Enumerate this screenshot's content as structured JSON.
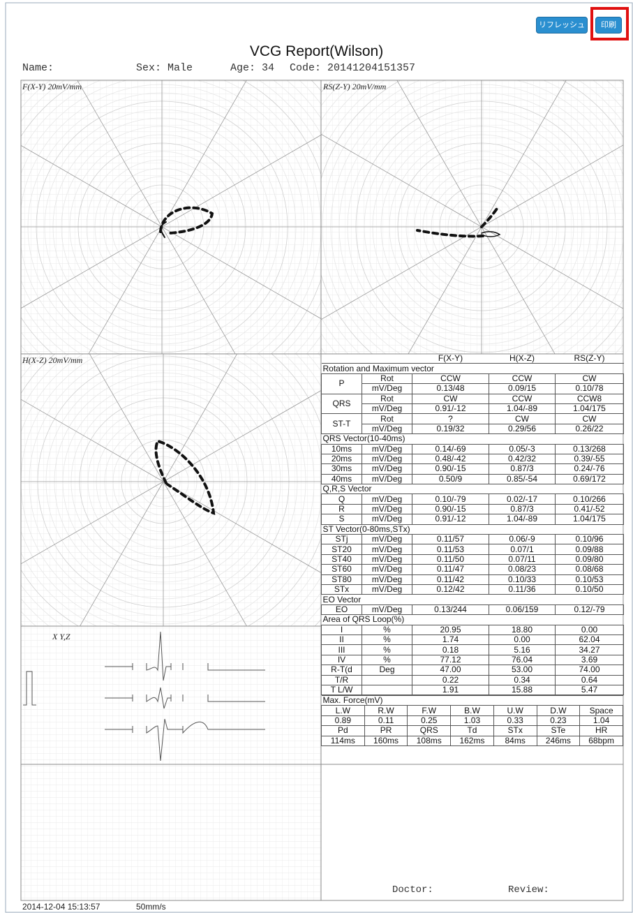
{
  "toolbar": {
    "refresh": "リフレッシュ",
    "print": "印刷"
  },
  "header": {
    "title": "VCG Report(Wilson)",
    "name": "Name:",
    "sex": "Sex: Male",
    "age": "Age: 34",
    "code": "Code: 20141204151357"
  },
  "panels": {
    "fxy": "F(X-Y) 20mV/mm",
    "rszy": "RS(Z-Y) 20mV/mm",
    "hxz": "H(X-Z) 20mV/mm",
    "xyz": "X Y,Z"
  },
  "table": {
    "columns": [
      "F(X-Y)",
      "H(X-Z)",
      "RS(Z-Y)"
    ],
    "sections": [
      {
        "title": "Rotation and Maximum vector",
        "rows": [
          {
            "label": "P",
            "lines": [
              {
                "unit": "Rot",
                "values": [
                  "CCW",
                  "CCW",
                  "CW"
                ]
              },
              {
                "unit": "mV/Deg",
                "values": [
                  "0.13/48",
                  "0.09/15",
                  "0.10/78"
                ]
              }
            ]
          },
          {
            "label": "QRS",
            "lines": [
              {
                "unit": "Rot",
                "values": [
                  "CW",
                  "CCW",
                  "CCW8"
                ]
              },
              {
                "unit": "mV/Deg",
                "values": [
                  "0.91/-12",
                  "1.04/-89",
                  "1.04/175"
                ]
              }
            ]
          },
          {
            "label": "ST-T",
            "lines": [
              {
                "unit": "Rot",
                "values": [
                  "?",
                  "CW",
                  "CW"
                ]
              },
              {
                "unit": "mV/Deg",
                "values": [
                  "0.19/32",
                  "0.29/56",
                  "0.26/22"
                ]
              }
            ]
          }
        ]
      },
      {
        "title": "QRS Vector(10-40ms)",
        "rows": [
          {
            "label": "10ms",
            "lines": [
              {
                "unit": "mV/Deg",
                "values": [
                  "0.14/-69",
                  "0.05/-3",
                  "0.13/268"
                ]
              }
            ]
          },
          {
            "label": "20ms",
            "lines": [
              {
                "unit": "mV/Deg",
                "values": [
                  "0.48/-42",
                  "0.42/32",
                  "0.39/-55"
                ]
              }
            ]
          },
          {
            "label": "30ms",
            "lines": [
              {
                "unit": "mV/Deg",
                "values": [
                  "0.90/-15",
                  "0.87/3",
                  "0.24/-76"
                ]
              }
            ]
          },
          {
            "label": "40ms",
            "lines": [
              {
                "unit": "mV/Deg",
                "values": [
                  "0.50/9",
                  "0.85/-54",
                  "0.69/172"
                ]
              }
            ]
          }
        ]
      },
      {
        "title": "Q,R,S Vector",
        "rows": [
          {
            "label": "Q",
            "lines": [
              {
                "unit": "mV/Deg",
                "values": [
                  "0.10/-79",
                  "0.02/-17",
                  "0.10/266"
                ]
              }
            ]
          },
          {
            "label": "R",
            "lines": [
              {
                "unit": "mV/Deg",
                "values": [
                  "0.90/-15",
                  "0.87/3",
                  "0.41/-52"
                ]
              }
            ]
          },
          {
            "label": "S",
            "lines": [
              {
                "unit": "mV/Deg",
                "values": [
                  "0.91/-12",
                  "1.04/-89",
                  "1.04/175"
                ]
              }
            ]
          }
        ]
      },
      {
        "title": "ST Vector(0-80ms,STx)",
        "rows": [
          {
            "label": "STj",
            "lines": [
              {
                "unit": "mV/Deg",
                "values": [
                  "0.11/57",
                  "0.06/-9",
                  "0.10/96"
                ]
              }
            ]
          },
          {
            "label": "ST20",
            "lines": [
              {
                "unit": "mV/Deg",
                "values": [
                  "0.11/53",
                  "0.07/1",
                  "0.09/88"
                ]
              }
            ]
          },
          {
            "label": "ST40",
            "lines": [
              {
                "unit": "mV/Deg",
                "values": [
                  "0.11/50",
                  "0.07/11",
                  "0.09/80"
                ]
              }
            ]
          },
          {
            "label": "ST60",
            "lines": [
              {
                "unit": "mV/Deg",
                "values": [
                  "0.11/47",
                  "0.08/23",
                  "0.08/68"
                ]
              }
            ]
          },
          {
            "label": "ST80",
            "lines": [
              {
                "unit": "mV/Deg",
                "values": [
                  "0.11/42",
                  "0.10/33",
                  "0.10/53"
                ]
              }
            ]
          },
          {
            "label": "STx",
            "lines": [
              {
                "unit": "mV/Deg",
                "values": [
                  "0.12/42",
                  "0.11/36",
                  "0.10/50"
                ]
              }
            ]
          }
        ]
      },
      {
        "title": "EO Vector",
        "rows": [
          {
            "label": "EO",
            "lines": [
              {
                "unit": "mV/Deg",
                "values": [
                  "0.13/244",
                  "0.06/159",
                  "0.12/-79"
                ]
              }
            ]
          }
        ]
      },
      {
        "title": "Area of QRS Loop(%)",
        "rows": [
          {
            "label": "I",
            "lines": [
              {
                "unit": "%",
                "values": [
                  "20.95",
                  "18.80",
                  "0.00"
                ]
              }
            ]
          },
          {
            "label": "II",
            "lines": [
              {
                "unit": "%",
                "values": [
                  "1.74",
                  "0.00",
                  "62.04"
                ]
              }
            ]
          },
          {
            "label": "III",
            "lines": [
              {
                "unit": "%",
                "values": [
                  "0.18",
                  "5.16",
                  "34.27"
                ]
              }
            ]
          },
          {
            "label": "IV",
            "lines": [
              {
                "unit": "%",
                "values": [
                  "77.12",
                  "76.04",
                  "3.69"
                ]
              }
            ]
          },
          {
            "label": "R-T(d",
            "lines": [
              {
                "unit": "Deg",
                "values": [
                  "47.00",
                  "53.00",
                  "74.00"
                ]
              }
            ]
          },
          {
            "label": "T/R",
            "lines": [
              {
                "values": [
                  "0.22",
                  "0.34",
                  "0.64"
                ]
              }
            ]
          },
          {
            "label": "T L/W",
            "lines": [
              {
                "values": [
                  "1.91",
                  "15.88",
                  "5.47"
                ]
              }
            ]
          }
        ]
      }
    ]
  },
  "max_force": {
    "title": "Max. Force(mV)",
    "rows": [
      [
        "L.W",
        "R.W",
        "F.W",
        "B.W",
        "U.W",
        "D.W",
        "Space"
      ],
      [
        "0.89",
        "0.11",
        "0.25",
        "1.03",
        "0.33",
        "0.23",
        "1.04"
      ],
      [
        "Pd",
        "PR",
        "QRS",
        "Td",
        "STx",
        "STe",
        "HR"
      ],
      [
        "114ms",
        "160ms",
        "108ms",
        "162ms",
        "84ms",
        "246ms",
        "68bpm"
      ]
    ]
  },
  "footer": {
    "doctor": "Doctor:",
    "review": "Review:",
    "timestamp": "2014-12-04 15:13:57",
    "speed": "50mm/s"
  }
}
